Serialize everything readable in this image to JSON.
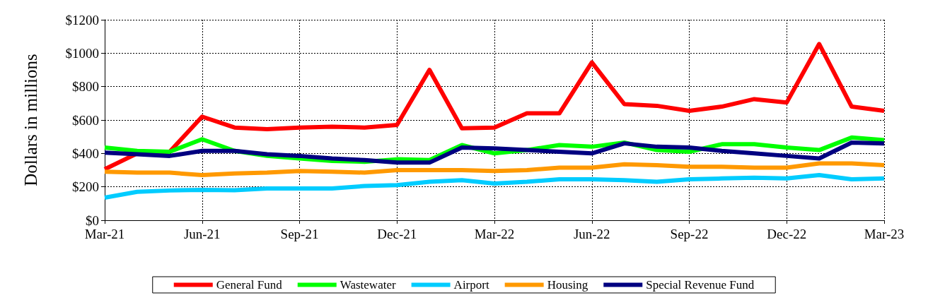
{
  "chart_data": {
    "type": "line",
    "ylabel": "Dollars in millions",
    "categories": [
      "Mar-21",
      null,
      null,
      "Jun-21",
      null,
      null,
      "Sep-21",
      null,
      null,
      "Dec-21",
      null,
      null,
      "Mar-22",
      null,
      null,
      "Jun-22",
      null,
      null,
      "Sep-22",
      null,
      null,
      "Dec-22",
      null,
      null,
      "Mar-23"
    ],
    "series": [
      {
        "name": "General Fund",
        "color": "#ff0000",
        "values": [
          305,
          400,
          410,
          620,
          555,
          545,
          555,
          560,
          555,
          570,
          900,
          550,
          555,
          640,
          640,
          945,
          695,
          685,
          655,
          680,
          725,
          705,
          1055,
          680,
          655
        ]
      },
      {
        "name": "Wastewater",
        "color": "#00ff00",
        "values": [
          435,
          415,
          410,
          485,
          415,
          385,
          370,
          355,
          350,
          365,
          360,
          450,
          400,
          420,
          450,
          440,
          465,
          420,
          410,
          455,
          455,
          435,
          420,
          495,
          480
        ]
      },
      {
        "name": "Airport",
        "color": "#00ccff",
        "values": [
          135,
          170,
          178,
          182,
          180,
          190,
          190,
          190,
          205,
          210,
          230,
          240,
          220,
          230,
          245,
          245,
          240,
          230,
          245,
          250,
          255,
          250,
          270,
          245,
          250
        ]
      },
      {
        "name": "Housing",
        "color": "#ff9900",
        "values": [
          290,
          285,
          285,
          270,
          280,
          285,
          295,
          290,
          285,
          300,
          300,
          300,
          295,
          300,
          315,
          315,
          335,
          330,
          320,
          320,
          315,
          315,
          340,
          340,
          330
        ]
      },
      {
        "name": "Special Revenue Fund",
        "color": "#000080",
        "values": [
          405,
          395,
          385,
          415,
          415,
          395,
          385,
          370,
          360,
          345,
          345,
          435,
          430,
          420,
          410,
          400,
          460,
          440,
          435,
          415,
          400,
          385,
          370,
          465,
          460
        ]
      }
    ],
    "ylim": [
      0,
      1200
    ],
    "yticks": [
      {
        "value": 0,
        "label": "$0"
      },
      {
        "value": 200,
        "label": "$200"
      },
      {
        "value": 400,
        "label": "$400"
      },
      {
        "value": 600,
        "label": "$600"
      },
      {
        "value": 800,
        "label": "$800"
      },
      {
        "value": 1000,
        "label": "$1000"
      },
      {
        "value": 1200,
        "label": "$1200"
      }
    ],
    "grid": true,
    "legend": "bottom",
    "marker": "none",
    "line_style": "solid"
  }
}
